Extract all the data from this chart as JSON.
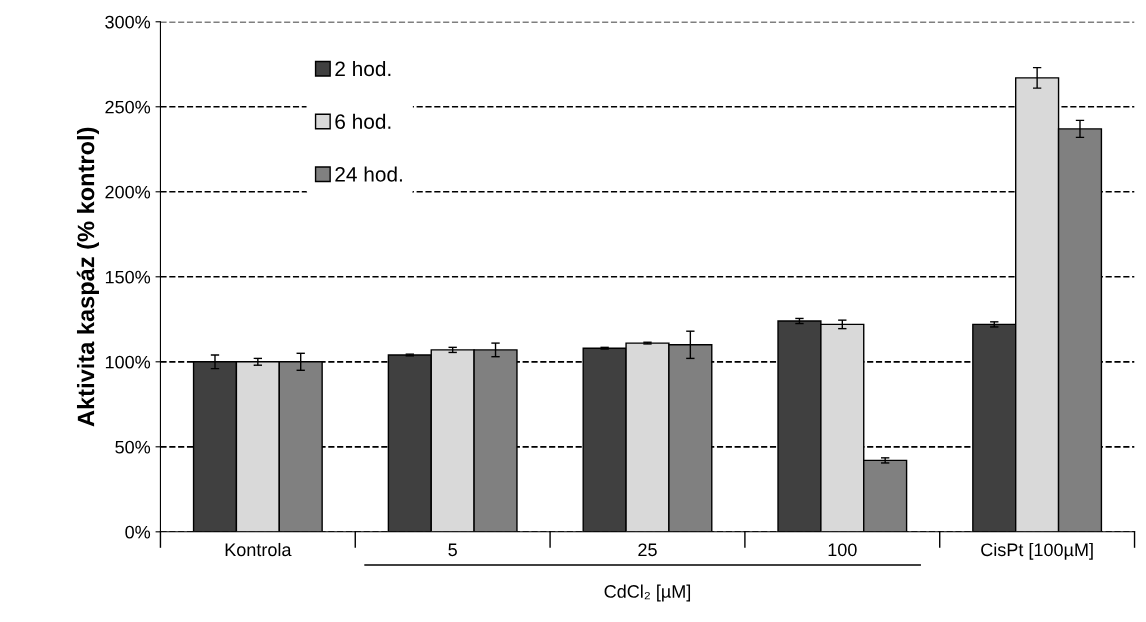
{
  "chart_data": {
    "type": "bar",
    "ylabel": "Aktivita kaspáz (% kontrol)",
    "categories": [
      "Kontrola",
      "5",
      "25",
      "100",
      "CisPt [100µM]"
    ],
    "series": [
      {
        "name": "2 hod.",
        "color": "#404040",
        "values": [
          100,
          104,
          108,
          124,
          122
        ],
        "errors": [
          4,
          0.5,
          0.5,
          1.5,
          1.5
        ]
      },
      {
        "name": "6 hod.",
        "color": "#d9d9d9",
        "values": [
          100,
          107,
          111,
          122,
          267
        ],
        "errors": [
          2,
          1.5,
          0.5,
          2.5,
          6
        ]
      },
      {
        "name": "24 hod.",
        "color": "#808080",
        "values": [
          100,
          107,
          110,
          42,
          237
        ],
        "errors": [
          5,
          4,
          8,
          1.5,
          5
        ]
      }
    ],
    "ylim": [
      0,
      300
    ],
    "yticks": [
      {
        "value": 0,
        "label": "0%"
      },
      {
        "value": 50,
        "label": "50%"
      },
      {
        "value": 100,
        "label": "100%"
      },
      {
        "value": 150,
        "label": "150%"
      },
      {
        "value": 200,
        "label": "200%"
      },
      {
        "value": 250,
        "label": "250%"
      },
      {
        "value": 300,
        "label": "300%"
      }
    ],
    "grid": "y",
    "legend": "top left",
    "line_style": "dashed",
    "annotations": [
      "CdCl₂ [µM]"
    ]
  }
}
